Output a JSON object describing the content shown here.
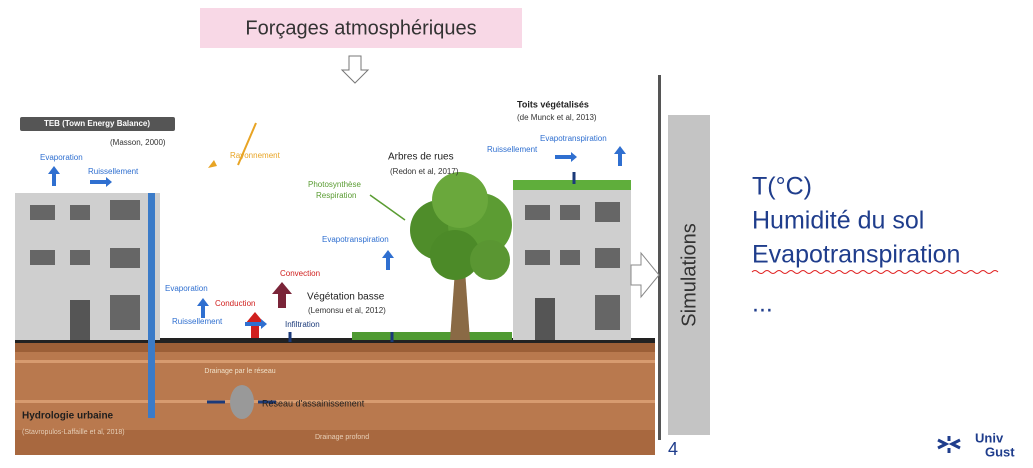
{
  "header": {
    "title": "Forçages atmosphériques"
  },
  "diagram": {
    "teb": {
      "title": "TEB (Town Energy Balance)",
      "ref": "(Masson, 2000)"
    },
    "roof": {
      "evaporation": "Evaporation",
      "runoff": "Ruissellement",
      "radiation": "Rayonnement"
    },
    "trees": {
      "title": "Arbres de rues",
      "ref": "(Redon et al, 2017)",
      "photosynthesis": "Photosynthèse",
      "respiration": "Respiration",
      "evapotranspiration": "Evapotranspiration"
    },
    "green_roofs": {
      "title": "Toits végétalisés",
      "ref": "(de Munck et al, 2013)",
      "evapotranspiration": "Evapotranspiration",
      "runoff": "Ruissellement"
    },
    "street": {
      "convection": "Convection",
      "conduction": "Conduction",
      "evaporation": "Evaporation",
      "runoff": "Ruissellement",
      "infiltration": "Infiltration"
    },
    "low_vegetation": {
      "title": "Végétation basse",
      "ref": "(Lemonsu et al, 2012)"
    },
    "underground": {
      "network_drainage": "Drainage par le réseau",
      "sewer": "Réseau d'assainissement",
      "hydrology": "Hydrologie urbaine",
      "hydrology_ref": "(Stavropulos-Laffaille et al, 2018)",
      "deep_drainage": "Drainage profond"
    }
  },
  "side_box": "Simulations",
  "outputs": [
    "T(°C)",
    "Humidité du sol",
    "Evapotranspiration",
    "..."
  ],
  "page_number": "4",
  "logo": [
    "Univ",
    "Gust"
  ]
}
